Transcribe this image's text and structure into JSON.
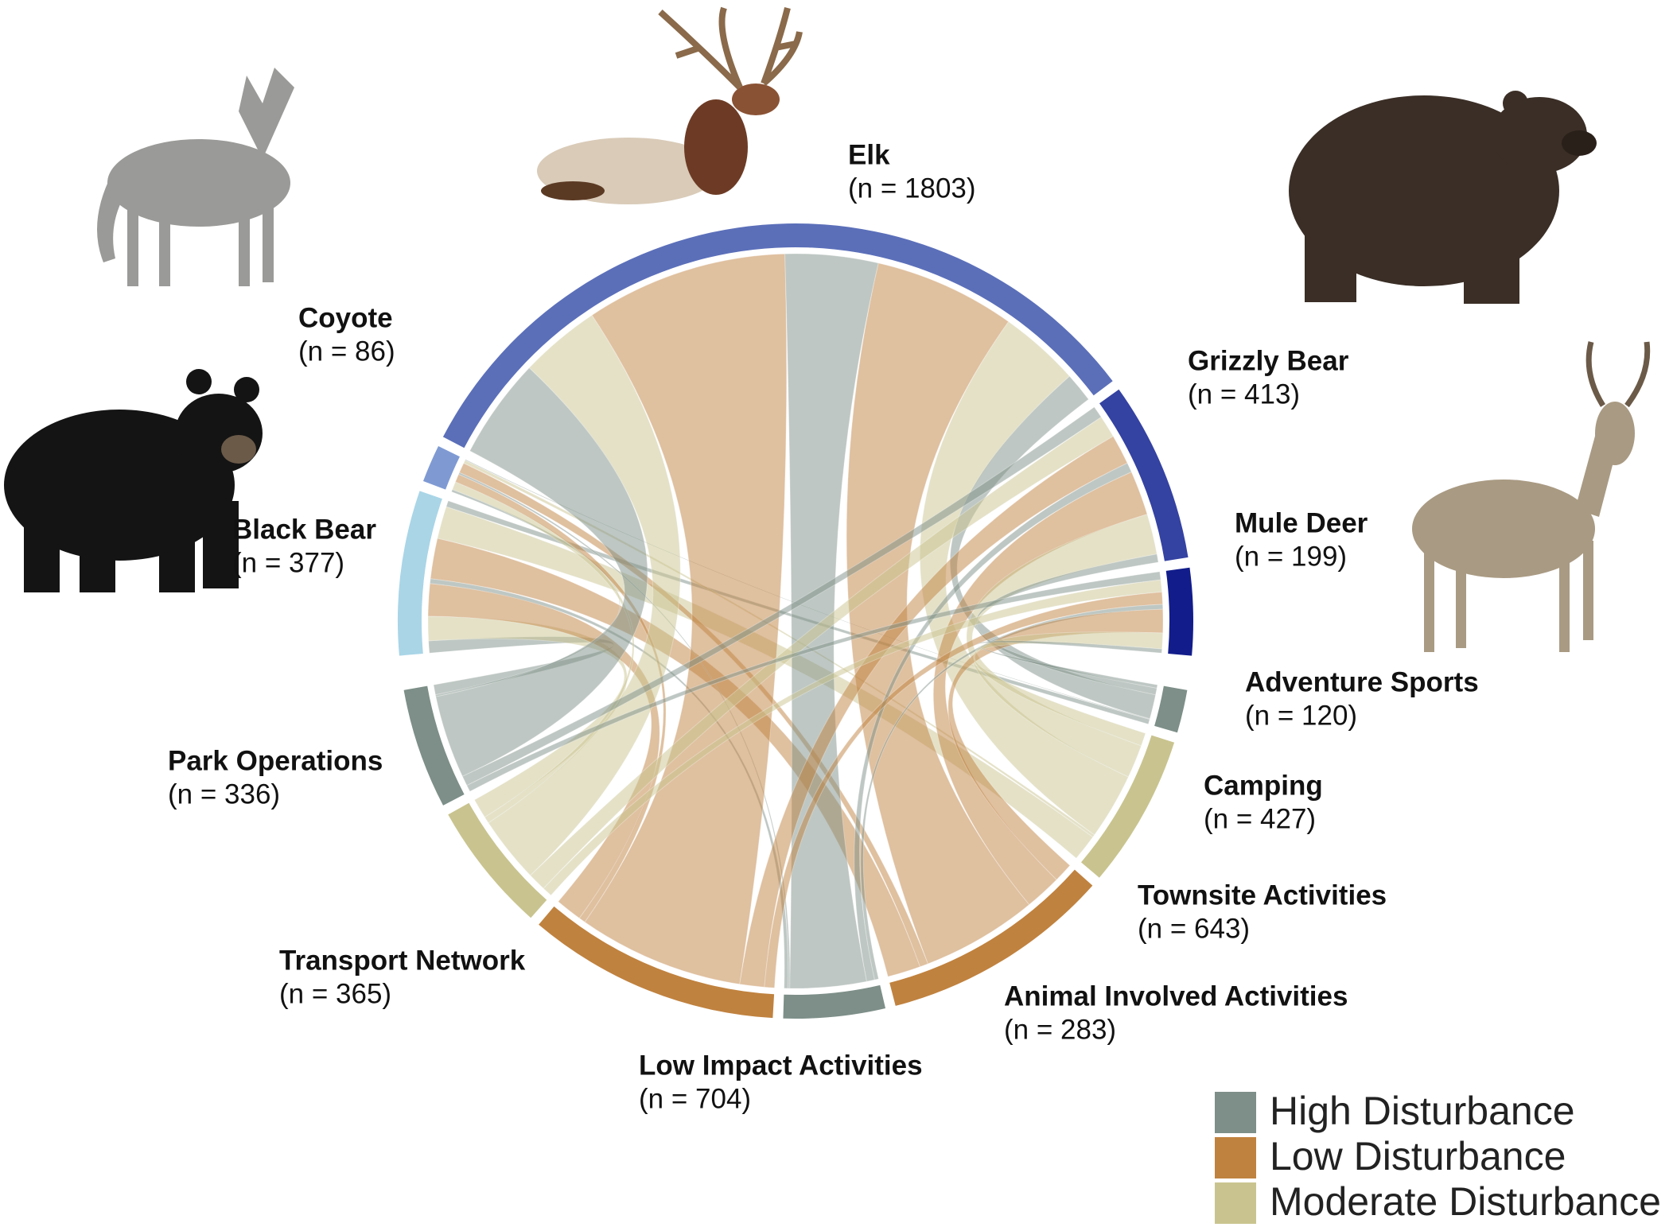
{
  "chart_data": {
    "type": "chord",
    "sources": [
      {
        "name": "Black Bear",
        "value": 377,
        "value_label": "(n = 377)",
        "color": "#a9d5e7"
      },
      {
        "name": "Coyote",
        "value": 86,
        "value_label": "(n = 86)",
        "color": "#7f9ad3"
      },
      {
        "name": "Elk",
        "value": 1803,
        "value_label": "(n = 1803)",
        "color": "#5b6fb9"
      },
      {
        "name": "Grizzly Bear",
        "value": 413,
        "value_label": "(n = 413)",
        "color": "#3442a2"
      },
      {
        "name": "Mule Deer",
        "value": 199,
        "value_label": "(n = 199)",
        "color": "#121d8b"
      }
    ],
    "targets": [
      {
        "name": "Adventure Sports",
        "value": 120,
        "value_label": "(n = 120)",
        "color": "#7d8f88"
      },
      {
        "name": "Camping",
        "value": 427,
        "value_label": "(n =  427)",
        "color": "#c9c48f"
      },
      {
        "name": "Townsite Activities",
        "value": 643,
        "value_label": "(n = 643)",
        "color": "#c0823f"
      },
      {
        "name": "Animal Involved Activities",
        "value": 283,
        "value_label": "(n = 283)",
        "color": "#7d8f88"
      },
      {
        "name": "Low Impact Activities",
        "value": 704,
        "value_label": "(n = 704)",
        "color": "#c0823f"
      },
      {
        "name": "Transport Network",
        "value": 365,
        "value_label": "(n = 365)",
        "color": "#c9c48f"
      },
      {
        "name": "Park Operations",
        "value": 336,
        "value_label": "(n = 336)",
        "color": "#7d8f88"
      }
    ],
    "flows": [
      [
        15,
        80,
        100,
        12,
        80,
        60,
        30
      ],
      [
        2,
        8,
        25,
        5,
        20,
        20,
        6
      ],
      [
        73,
        200,
        350,
        230,
        500,
        200,
        250
      ],
      [
        20,
        100,
        110,
        24,
        74,
        55,
        30
      ],
      [
        10,
        39,
        58,
        12,
        30,
        30,
        20
      ]
    ],
    "legend": [
      {
        "name": "High Disturbance",
        "color": "#7d8f88"
      },
      {
        "name": "Low Disturbance",
        "color": "#c0823f"
      },
      {
        "name": "Moderate Disturbance",
        "color": "#c9c48f"
      }
    ]
  }
}
